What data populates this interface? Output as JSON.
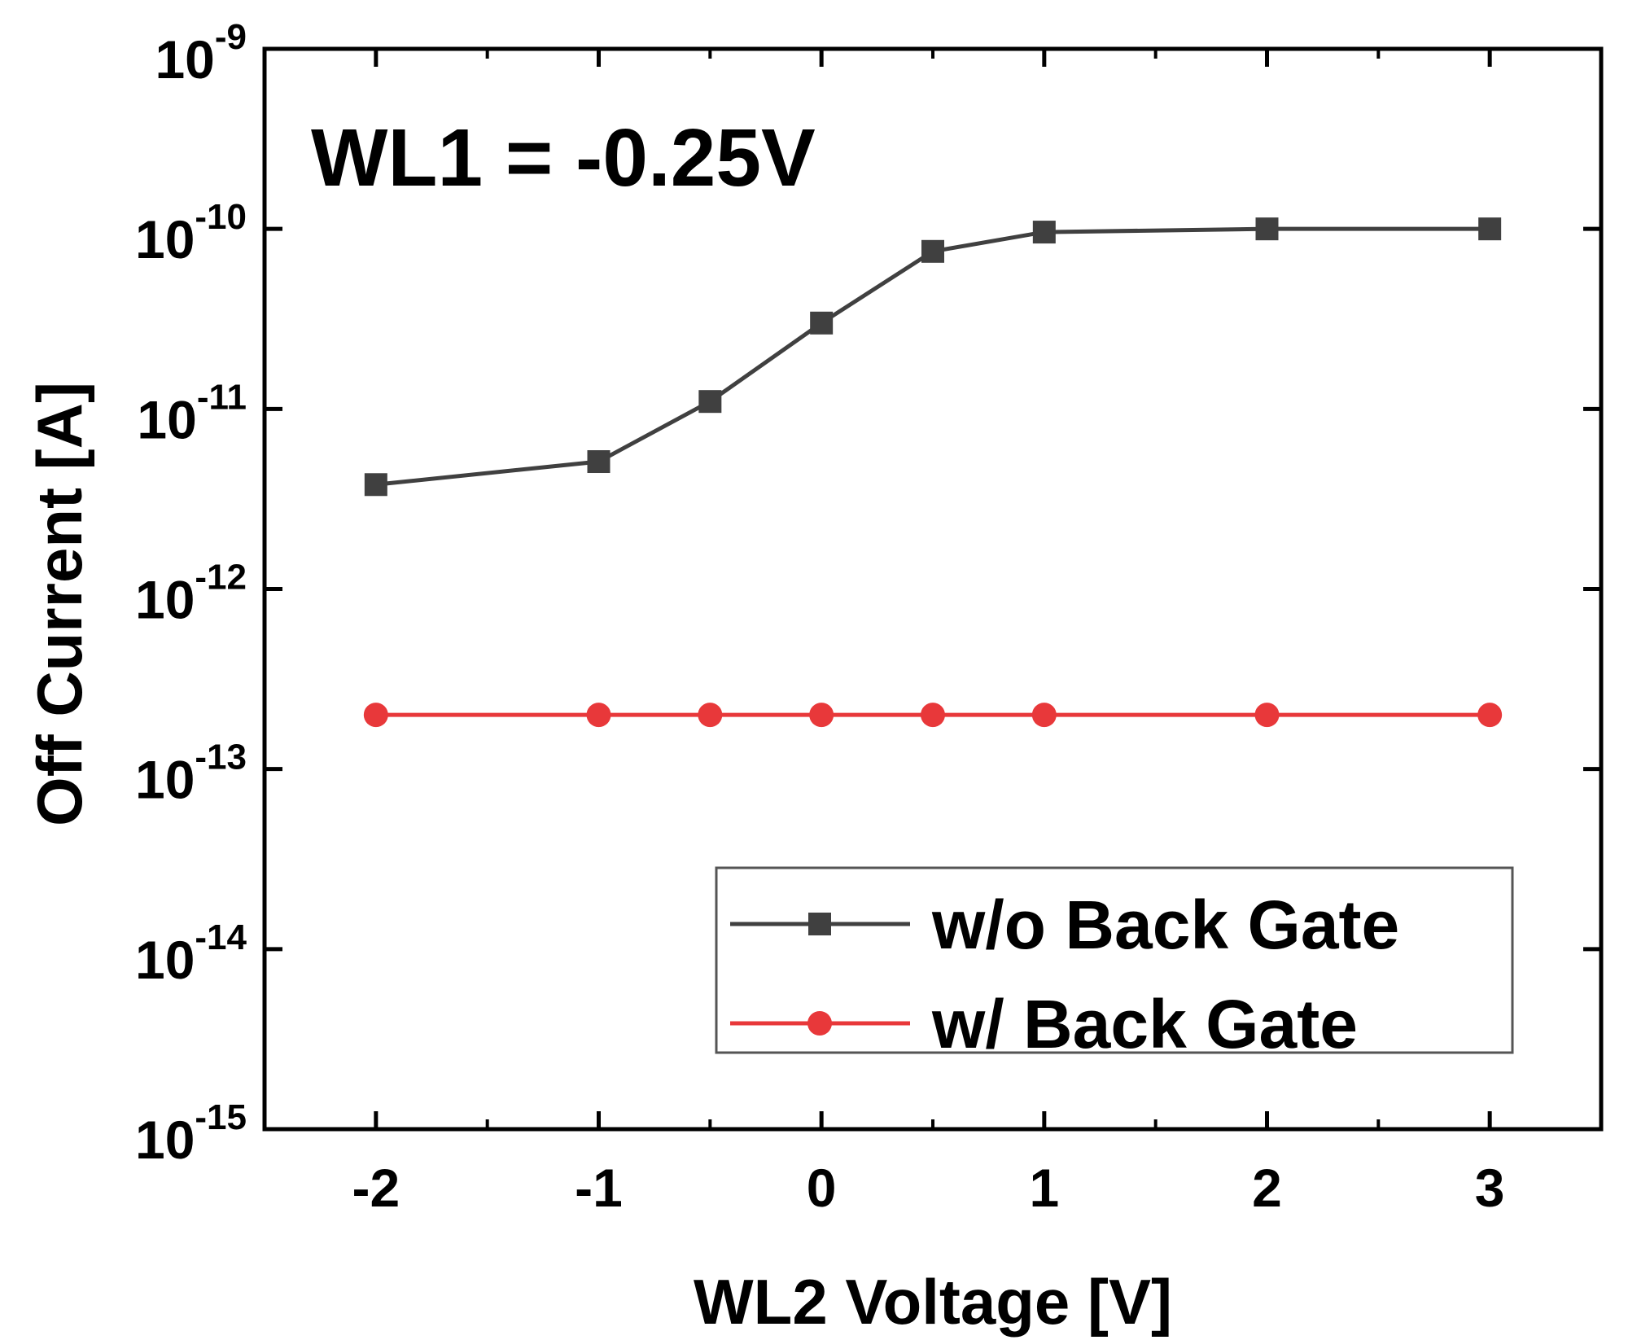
{
  "chart_data": {
    "type": "line",
    "xlabel": "WL2 Voltage [V]",
    "ylabel": "Off Current [A]",
    "annotation": "WL1 = -0.25V",
    "xlim": [
      -2.5,
      3.5
    ],
    "ylim": [
      1e-15,
      1e-09
    ],
    "yscale": "log",
    "x_ticks": [
      -2,
      -1,
      0,
      1,
      2,
      3
    ],
    "x_tick_labels": [
      "-2",
      "-1",
      "0",
      "1",
      "2",
      "3"
    ],
    "y_ticks": [
      {
        "value": 1e-09,
        "base": "10",
        "exp": "-9"
      },
      {
        "value": 1e-10,
        "base": "10",
        "exp": "-10"
      },
      {
        "value": 1e-11,
        "base": "10",
        "exp": "-11"
      },
      {
        "value": 1e-12,
        "base": "10",
        "exp": "-12"
      },
      {
        "value": 1e-13,
        "base": "10",
        "exp": "-13"
      },
      {
        "value": 1e-14,
        "base": "10",
        "exp": "-14"
      },
      {
        "value": 1e-15,
        "base": "10",
        "exp": "-15"
      }
    ],
    "x": [
      -2,
      -1,
      -0.5,
      0,
      0.5,
      1,
      2,
      3
    ],
    "series": [
      {
        "name": "w/o Back Gate",
        "color": "#404040",
        "marker": "square",
        "values": [
          3.8e-12,
          5.1e-12,
          1.1e-11,
          3e-11,
          7.5e-11,
          9.6e-11,
          1e-10,
          1e-10
        ]
      },
      {
        "name": "w/   Back Gate",
        "color": "#e8383a",
        "marker": "circle",
        "values": [
          2e-13,
          2e-13,
          2e-13,
          2e-13,
          2e-13,
          2e-13,
          2e-13,
          2e-13
        ]
      }
    ],
    "legend_position": "bottom-right",
    "grid": false
  }
}
